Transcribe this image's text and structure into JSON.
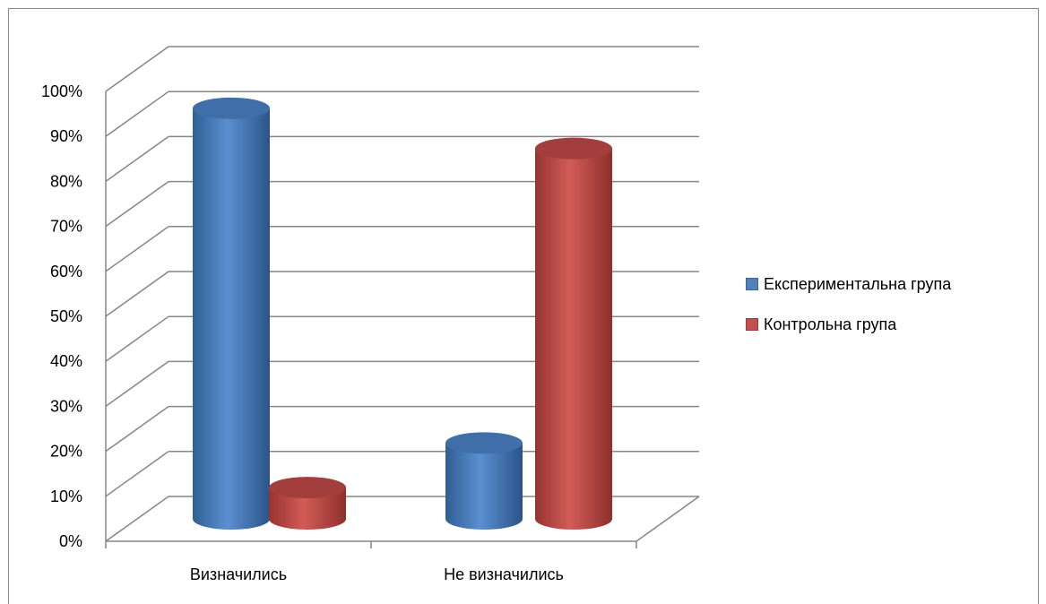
{
  "chart_data": {
    "type": "bar",
    "style": "3d-cylinder",
    "categories": [
      "Визначились",
      "Не визначились"
    ],
    "series": [
      {
        "name": "Експериментальна група",
        "color": "#4f81bd",
        "values": [
          92,
          17
        ]
      },
      {
        "name": "Контрольна група",
        "color": "#c0504d",
        "values": [
          7,
          83
        ]
      }
    ],
    "ylim": [
      0,
      100
    ],
    "y_ticks": [
      "0%",
      "10%",
      "20%",
      "30%",
      "40%",
      "50%",
      "60%",
      "70%",
      "80%",
      "90%",
      "100%"
    ],
    "grid": true,
    "legend_position": "right"
  }
}
